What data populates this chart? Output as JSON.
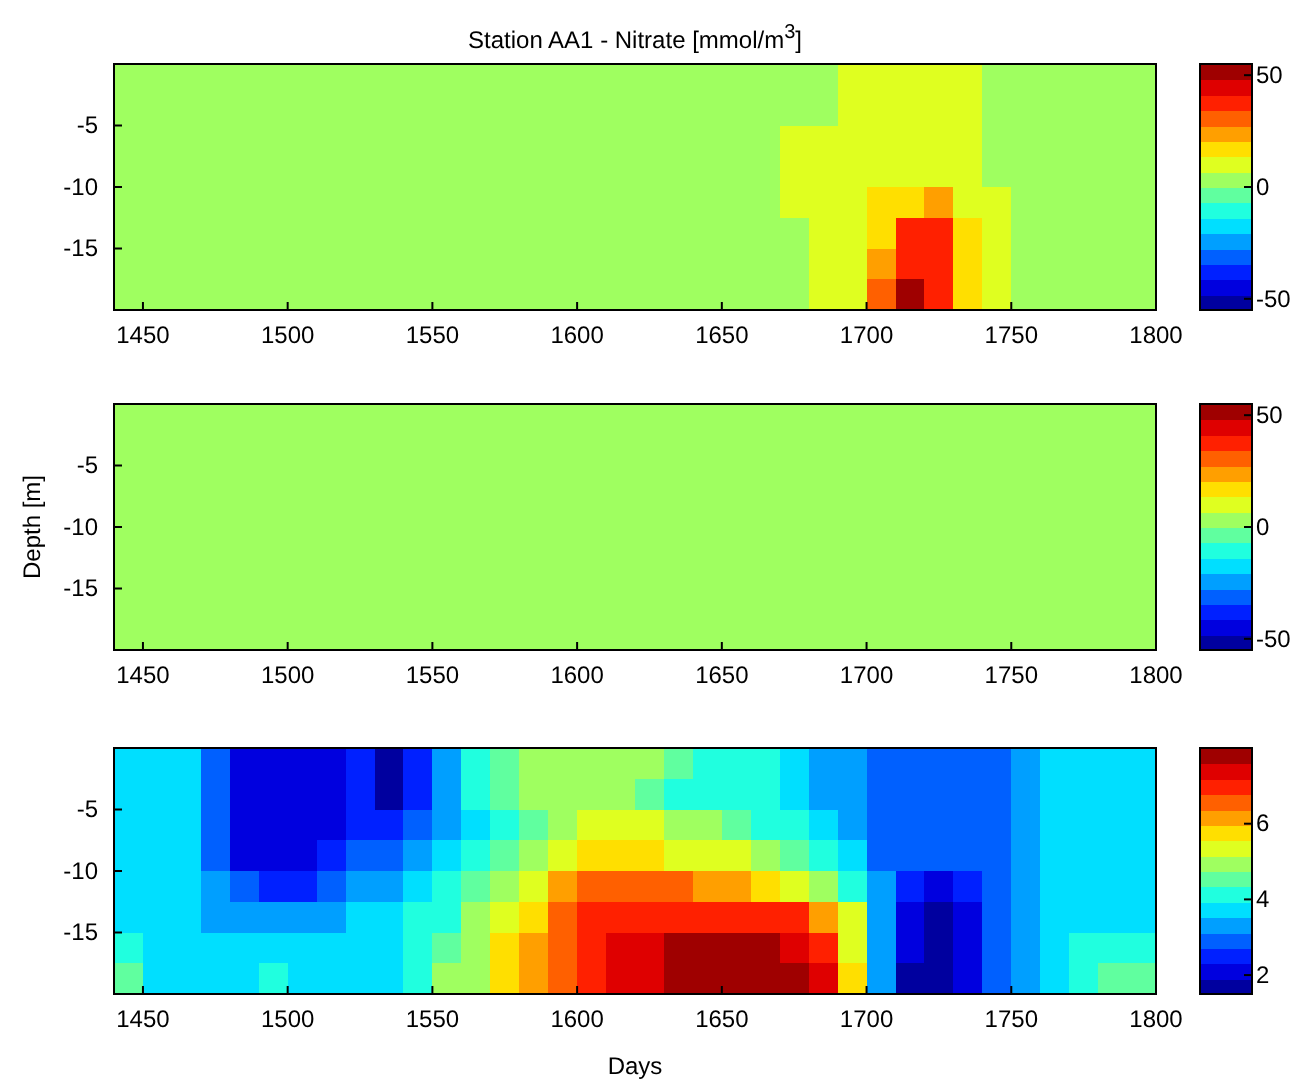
{
  "chart_data": [
    {
      "type": "heatmap",
      "title": "Station AA1 - Nitrate [mmol/m$^{3}$]",
      "xlim": [
        1440,
        1800
      ],
      "xticks": [
        1450,
        1500,
        1550,
        1600,
        1650,
        1700,
        1750,
        1800
      ],
      "ylim": [
        -20,
        0
      ],
      "yticks": [
        -5,
        -10,
        -15
      ],
      "clim": [
        -55,
        55
      ],
      "cticks": [
        -50,
        0,
        50
      ],
      "cells": [
        [
          0,
          0,
          0,
          0,
          0,
          0,
          0,
          0,
          0,
          0,
          0,
          0,
          0,
          0,
          0,
          0,
          0,
          0,
          0,
          0,
          0,
          0,
          0,
          0,
          0,
          10,
          10,
          10,
          10,
          10,
          0,
          0,
          0,
          0,
          0,
          0
        ],
        [
          0,
          0,
          0,
          0,
          0,
          0,
          0,
          0,
          0,
          0,
          0,
          0,
          0,
          0,
          0,
          0,
          0,
          0,
          0,
          0,
          0,
          0,
          0,
          0,
          0,
          10,
          10,
          10,
          10,
          10,
          0,
          0,
          0,
          0,
          0,
          0
        ],
        [
          0,
          0,
          0,
          0,
          0,
          0,
          0,
          0,
          0,
          0,
          0,
          0,
          0,
          0,
          0,
          0,
          0,
          0,
          0,
          0,
          0,
          0,
          0,
          10,
          10,
          10,
          10,
          10,
          10,
          10,
          0,
          0,
          0,
          0,
          0,
          0
        ],
        [
          0,
          0,
          0,
          0,
          0,
          0,
          0,
          0,
          0,
          0,
          0,
          0,
          0,
          0,
          0,
          0,
          0,
          0,
          0,
          0,
          0,
          0,
          0,
          10,
          10,
          10,
          10,
          10,
          10,
          10,
          0,
          0,
          0,
          0,
          0,
          0
        ],
        [
          0,
          0,
          0,
          0,
          0,
          0,
          0,
          0,
          0,
          0,
          0,
          0,
          0,
          0,
          0,
          0,
          0,
          0,
          0,
          0,
          0,
          0,
          0,
          10,
          10,
          10,
          15,
          15,
          25,
          10,
          10,
          0,
          0,
          0,
          0,
          0
        ],
        [
          0,
          0,
          0,
          0,
          0,
          0,
          0,
          0,
          0,
          0,
          0,
          0,
          0,
          0,
          0,
          0,
          0,
          0,
          0,
          0,
          0,
          0,
          0,
          0,
          10,
          10,
          20,
          35,
          40,
          15,
          10,
          0,
          0,
          0,
          0,
          0
        ],
        [
          0,
          0,
          0,
          0,
          0,
          0,
          0,
          0,
          0,
          0,
          0,
          0,
          0,
          0,
          0,
          0,
          0,
          0,
          0,
          0,
          0,
          0,
          0,
          0,
          10,
          10,
          25,
          40,
          35,
          15,
          10,
          0,
          0,
          0,
          0,
          0
        ],
        [
          0,
          0,
          0,
          0,
          0,
          0,
          0,
          0,
          0,
          0,
          0,
          0,
          0,
          0,
          0,
          0,
          0,
          0,
          0,
          0,
          0,
          0,
          0,
          0,
          10,
          10,
          30,
          55,
          35,
          15,
          10,
          0,
          0,
          0,
          0,
          0
        ]
      ]
    },
    {
      "type": "heatmap",
      "ylabel": "Depth [m]",
      "xlim": [
        1440,
        1800
      ],
      "xticks": [
        1450,
        1500,
        1550,
        1600,
        1650,
        1700,
        1750,
        1800
      ],
      "ylim": [
        -20,
        0
      ],
      "yticks": [
        -5,
        -10,
        -15
      ],
      "clim": [
        -55,
        55
      ],
      "cticks": [
        -50,
        0,
        50
      ],
      "cells": [
        [
          0
        ]
      ]
    },
    {
      "type": "heatmap",
      "xlabel": "Days",
      "xlim": [
        1440,
        1800
      ],
      "xticks": [
        1450,
        1500,
        1550,
        1600,
        1650,
        1700,
        1750,
        1800
      ],
      "ylim": [
        -20,
        0
      ],
      "yticks": [
        -5,
        -10,
        -15
      ],
      "clim": [
        1.5,
        8
      ],
      "cticks": [
        2,
        4,
        6
      ],
      "cells": [
        [
          3.8,
          3.8,
          3.8,
          3.0,
          2.2,
          2.2,
          2.2,
          2.2,
          2.5,
          1.8,
          2.5,
          3.2,
          4.0,
          4.6,
          4.8,
          4.8,
          4.8,
          4.8,
          4.8,
          4.4,
          4.2,
          4.2,
          4.2,
          3.8,
          3.3,
          3.3,
          2.8,
          2.8,
          2.8,
          2.8,
          2.8,
          3.3,
          3.8,
          3.8,
          3.8,
          3.8
        ],
        [
          3.8,
          3.8,
          3.8,
          3.0,
          2.2,
          2.2,
          2.2,
          2.2,
          2.5,
          1.8,
          2.5,
          3.2,
          4.0,
          4.4,
          4.8,
          4.8,
          4.8,
          4.8,
          4.6,
          4.3,
          4.2,
          4.2,
          4.0,
          3.8,
          3.3,
          3.3,
          2.8,
          2.8,
          2.8,
          2.8,
          2.8,
          3.3,
          3.8,
          3.8,
          3.8,
          3.8
        ],
        [
          3.8,
          3.8,
          3.8,
          3.0,
          2.2,
          2.2,
          2.2,
          2.2,
          2.5,
          2.5,
          2.8,
          3.2,
          3.6,
          4.2,
          4.6,
          5.0,
          5.2,
          5.3,
          5.3,
          5.0,
          4.8,
          4.5,
          4.3,
          4.0,
          3.6,
          3.3,
          2.8,
          2.8,
          2.8,
          2.8,
          2.8,
          3.3,
          3.8,
          3.8,
          3.8,
          3.8
        ],
        [
          3.8,
          3.8,
          3.8,
          3.0,
          2.2,
          2.2,
          2.2,
          2.5,
          2.8,
          3.0,
          3.3,
          3.7,
          4.2,
          4.6,
          5.0,
          5.5,
          5.8,
          5.9,
          5.7,
          5.5,
          5.4,
          5.2,
          5.0,
          4.7,
          4.3,
          3.9,
          3.0,
          2.8,
          2.8,
          2.8,
          2.8,
          3.3,
          3.8,
          3.8,
          3.8,
          3.8
        ],
        [
          3.8,
          3.8,
          3.8,
          3.3,
          2.8,
          2.5,
          2.5,
          2.8,
          3.2,
          3.5,
          3.8,
          4.1,
          4.5,
          5.0,
          5.5,
          6.0,
          6.4,
          6.6,
          6.6,
          6.4,
          6.2,
          6.0,
          5.8,
          5.4,
          4.9,
          4.3,
          3.3,
          2.5,
          2.2,
          2.5,
          2.8,
          3.3,
          3.8,
          3.8,
          3.8,
          3.8
        ],
        [
          3.8,
          3.8,
          3.8,
          3.5,
          3.2,
          3.2,
          3.2,
          3.3,
          3.6,
          3.8,
          4.0,
          4.3,
          4.8,
          5.3,
          5.9,
          6.4,
          6.8,
          7.0,
          7.1,
          7.1,
          7.1,
          7.1,
          7.1,
          6.9,
          6.3,
          5.3,
          3.5,
          2.2,
          1.8,
          2.2,
          2.8,
          3.3,
          3.8,
          3.8,
          3.8,
          3.8
        ],
        [
          4.0,
          3.8,
          3.8,
          3.8,
          3.8,
          3.8,
          3.8,
          3.8,
          3.8,
          3.8,
          4.2,
          4.5,
          5.0,
          5.6,
          6.1,
          6.6,
          7.0,
          7.2,
          7.3,
          7.6,
          7.7,
          7.7,
          7.7,
          7.5,
          6.9,
          5.5,
          3.3,
          2.2,
          1.8,
          2.2,
          2.8,
          3.3,
          3.8,
          4.0,
          4.2,
          4.3
        ],
        [
          4.5,
          3.8,
          3.8,
          3.8,
          3.8,
          4.2,
          3.8,
          3.8,
          3.8,
          3.8,
          4.3,
          4.8,
          5.1,
          5.7,
          6.2,
          6.7,
          7.1,
          7.3,
          7.5,
          7.8,
          7.8,
          7.8,
          7.8,
          7.8,
          7.3,
          5.8,
          3.5,
          1.8,
          1.6,
          2.0,
          2.8,
          3.3,
          3.8,
          4.2,
          4.6,
          4.7
        ]
      ]
    }
  ]
}
